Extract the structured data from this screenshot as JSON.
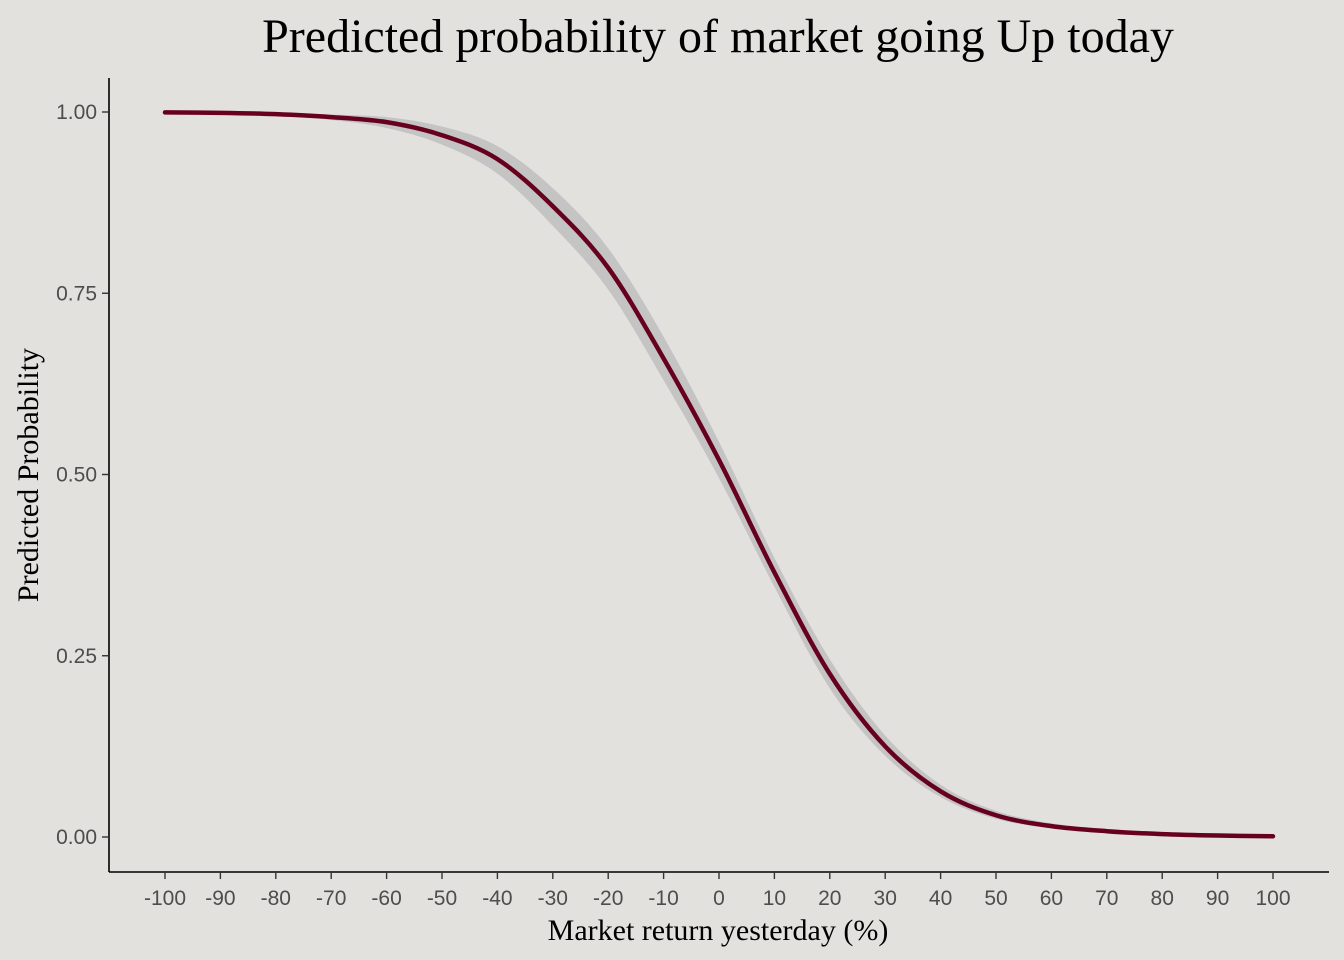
{
  "chart_data": {
    "type": "line",
    "title": "Predicted probability of market going Up today",
    "xlabel": "Market return yesterday (%)",
    "ylabel": "Predicted Probability",
    "xlim": [
      -100,
      100
    ],
    "ylim": [
      0,
      1
    ],
    "x_ticks": [
      -100,
      -90,
      -80,
      -70,
      -60,
      -50,
      -40,
      -30,
      -20,
      -10,
      0,
      10,
      20,
      30,
      40,
      50,
      60,
      70,
      80,
      90,
      100
    ],
    "x_tick_labels": [
      "-100",
      "-90",
      "-80",
      "-70",
      "-60",
      "-50",
      "-40",
      "-30",
      "-20",
      "-10",
      "0",
      "10",
      "20",
      "30",
      "40",
      "50",
      "60",
      "70",
      "80",
      "90",
      "100"
    ],
    "y_ticks": [
      0,
      0.25,
      0.5,
      0.75,
      1.0
    ],
    "y_tick_labels": [
      "0.00",
      "0.25",
      "0.50",
      "0.75",
      "1.00"
    ],
    "grid": false,
    "series": [
      {
        "x": [
          -100,
          -90,
          -80,
          -70,
          -60,
          -50,
          -40,
          -30,
          -20,
          -10,
          0,
          10,
          20,
          30,
          40,
          50,
          60,
          70,
          80,
          90,
          100
        ],
        "y": [
          0.9995,
          0.9988,
          0.997,
          0.993,
          0.986,
          0.968,
          0.935,
          0.87,
          0.785,
          0.66,
          0.52,
          0.365,
          0.225,
          0.125,
          0.063,
          0.03,
          0.015,
          0.008,
          0.004,
          0.002,
          0.001
        ],
        "y_lower": [
          0.9992,
          0.998,
          0.995,
          0.989,
          0.978,
          0.955,
          0.915,
          0.843,
          0.755,
          0.63,
          0.495,
          0.345,
          0.205,
          0.112,
          0.055,
          0.025,
          0.012,
          0.006,
          0.003,
          0.0015,
          0.0008
        ],
        "y_upper": [
          0.9998,
          0.9993,
          0.9984,
          0.9965,
          0.993,
          0.98,
          0.953,
          0.895,
          0.812,
          0.69,
          0.545,
          0.385,
          0.245,
          0.14,
          0.072,
          0.036,
          0.019,
          0.011,
          0.006,
          0.003,
          0.0015
        ],
        "color": "#67001f",
        "ci_color": "#c4c4c4"
      }
    ]
  }
}
